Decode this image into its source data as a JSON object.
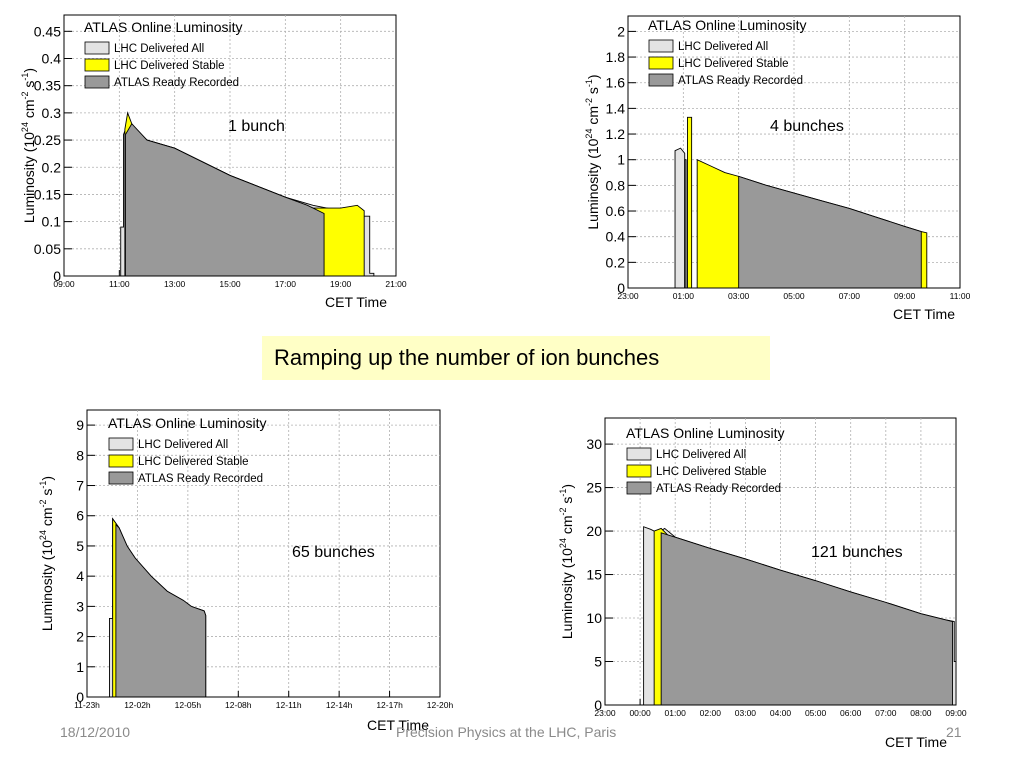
{
  "banner": "Ramping up the number of ion bunches",
  "footer": {
    "date": "18/12/2010",
    "center": "Precision Physics at the LHC, Paris",
    "page": "21"
  },
  "colors": {
    "delivered_all": "#e3e3e3",
    "delivered_stable": "#ffff00",
    "ready_recorded": "#999999"
  },
  "chart_data": [
    {
      "type": "area",
      "title": "ATLAS Online Luminosity",
      "annotation": "1 bunch",
      "xlabel": "CET Time",
      "ylabel": {
        "pre": "Luminosity (10",
        "exp1": "24",
        "mid": " cm",
        "exp2": "-2",
        "post": " s",
        "exp3": "-1",
        "end": ")"
      },
      "x_ticks": [
        "09:00",
        "11:00",
        "13:00",
        "15:00",
        "17:00",
        "19:00",
        "21:00"
      ],
      "xlim": [
        9,
        21
      ],
      "ylim": [
        0,
        0.48
      ],
      "y_ticks": [
        0,
        0.05,
        0.1,
        0.15,
        0.2,
        0.25,
        0.3,
        0.35,
        0.4,
        0.45
      ],
      "y_tick_labels": [
        "0",
        "0.05",
        "0.1",
        "0.15",
        "0.2",
        "0.25",
        "0.3",
        "0.35",
        "0.4",
        "0.45"
      ],
      "series": [
        {
          "name": "LHC Delivered All",
          "points": [
            [
              11.05,
              0
            ],
            [
              11.05,
              0.09
            ],
            [
              11.15,
              0.09
            ],
            [
              11.15,
              0.26
            ],
            [
              11.3,
              0.28
            ],
            [
              11.5,
              0.26
            ],
            [
              12,
              0.25
            ],
            [
              13,
              0.235
            ],
            [
              14,
              0.21
            ],
            [
              15,
              0.185
            ],
            [
              16,
              0.165
            ],
            [
              17,
              0.145
            ],
            [
              18,
              0.13
            ],
            [
              19,
              0.12
            ],
            [
              19.5,
              0.11
            ],
            [
              20.05,
              0.11
            ],
            [
              20.05,
              0.005
            ],
            [
              20.2,
              0.005
            ],
            [
              20.2,
              0
            ]
          ]
        },
        {
          "name": "LHC Delivered Stable",
          "points": [
            [
              11.2,
              0.27
            ],
            [
              11.3,
              0.3
            ],
            [
              11.45,
              0.28
            ],
            [
              11.6,
              0.27
            ],
            [
              12,
              0.25
            ],
            [
              13,
              0.235
            ],
            [
              14,
              0.21
            ],
            [
              15,
              0.185
            ],
            [
              16,
              0.165
            ],
            [
              17,
              0.145
            ],
            [
              18,
              0.125
            ],
            [
              18.5,
              0.125
            ],
            [
              19,
              0.125
            ],
            [
              19.6,
              0.13
            ],
            [
              19.85,
              0.12
            ]
          ]
        },
        {
          "name": "ATLAS Ready Recorded",
          "points": [
            [
              11.22,
              0.26
            ],
            [
              11.45,
              0.28
            ],
            [
              12,
              0.25
            ],
            [
              13,
              0.235
            ],
            [
              14,
              0.21
            ],
            [
              15,
              0.185
            ],
            [
              16,
              0.165
            ],
            [
              17,
              0.145
            ],
            [
              17.8,
              0.13
            ],
            [
              18.4,
              0.115
            ]
          ]
        }
      ]
    },
    {
      "type": "area",
      "title": "ATLAS Online Luminosity",
      "annotation": "4 bunches",
      "xlabel": "CET Time",
      "ylabel": {
        "pre": "Luminosity (10",
        "exp1": "24",
        "mid": " cm",
        "exp2": "-2",
        "post": " s",
        "exp3": "-1",
        "end": ")"
      },
      "x_ticks": [
        "23:00",
        "01:00",
        "03:00",
        "05:00",
        "07:00",
        "09:00",
        "11:00"
      ],
      "xlim": [
        23,
        35
      ],
      "ylim": [
        0,
        2.12
      ],
      "y_ticks": [
        0,
        0.2,
        0.4,
        0.6,
        0.8,
        1,
        1.2,
        1.4,
        1.6,
        1.8,
        2
      ],
      "y_tick_labels": [
        "0",
        "0.2",
        "0.4",
        "0.6",
        "0.8",
        "1",
        "1.2",
        "1.4",
        "1.6",
        "1.8",
        "2"
      ],
      "series": [
        {
          "name": "LHC Delivered All",
          "points": [
            [
              24.7,
              0
            ],
            [
              24.7,
              1.07
            ],
            [
              24.9,
              1.09
            ],
            [
              25.05,
              1.05
            ],
            [
              25.05,
              0
            ]
          ]
        },
        {
          "name": "LHC Delivered Stable",
          "points": [
            [
              25.15,
              0
            ],
            [
              25.15,
              1.33
            ],
            [
              25.3,
              1.33
            ],
            [
              25.3,
              0
            ],
            [
              25.5,
              0
            ],
            [
              25.5,
              1.0
            ],
            [
              26,
              0.95
            ],
            [
              26.5,
              0.9
            ],
            [
              27,
              0.87
            ],
            [
              28,
              0.8
            ],
            [
              29,
              0.74
            ],
            [
              30,
              0.68
            ],
            [
              31,
              0.62
            ],
            [
              32,
              0.55
            ],
            [
              33,
              0.48
            ],
            [
              33.6,
              0.44
            ],
            [
              33.8,
              0.43
            ],
            [
              33.8,
              0
            ]
          ]
        },
        {
          "name": "ATLAS Ready Recorded",
          "points": [
            [
              25.05,
              0
            ],
            [
              25.05,
              1.0
            ],
            [
              25.1,
              1.0
            ],
            [
              25.1,
              0
            ],
            [
              27,
              0
            ],
            [
              27,
              0.87
            ],
            [
              28,
              0.8
            ],
            [
              29,
              0.74
            ],
            [
              30,
              0.68
            ],
            [
              31,
              0.62
            ],
            [
              32,
              0.55
            ],
            [
              33,
              0.48
            ],
            [
              33.6,
              0.44
            ]
          ]
        }
      ]
    },
    {
      "type": "area",
      "title": "ATLAS Online Luminosity",
      "annotation": "65 bunches",
      "xlabel": "CET Time",
      "ylabel": {
        "pre": "Luminosity (10",
        "exp1": "24",
        "mid": " cm",
        "exp2": "-2",
        "post": " s",
        "exp3": "-1",
        "end": ")"
      },
      "x_ticks": [
        "11-23h",
        "12-02h",
        "12-05h",
        "12-08h",
        "12-11h",
        "12-14h",
        "12-17h",
        "12-20h"
      ],
      "xlim": [
        23,
        45
      ],
      "ylim": [
        0,
        9.5
      ],
      "y_ticks": [
        0,
        1,
        2,
        3,
        4,
        5,
        6,
        7,
        8,
        9
      ],
      "y_tick_labels": [
        "0",
        "1",
        "2",
        "3",
        "4",
        "5",
        "6",
        "7",
        "8",
        "9"
      ],
      "series": [
        {
          "name": "LHC Delivered All",
          "points": [
            [
              24.4,
              0
            ],
            [
              24.4,
              2.6
            ],
            [
              24.6,
              2.6
            ],
            [
              24.6,
              5.9
            ],
            [
              25,
              5.6
            ],
            [
              25.5,
              5.0
            ],
            [
              26,
              4.6
            ],
            [
              27,
              4.0
            ],
            [
              28,
              3.5
            ],
            [
              29,
              3.2
            ],
            [
              29.5,
              3.0
            ],
            [
              30.3,
              2.85
            ],
            [
              30.4,
              2.7
            ],
            [
              30.4,
              0
            ]
          ]
        },
        {
          "name": "LHC Delivered Stable",
          "points": [
            [
              24.6,
              5.9
            ],
            [
              25,
              5.6
            ],
            [
              25.3,
              5.2
            ]
          ]
        },
        {
          "name": "ATLAS Ready Recorded",
          "points": [
            [
              24.8,
              0
            ],
            [
              24.8,
              5.7
            ],
            [
              25,
              5.6
            ],
            [
              25.5,
              5.0
            ],
            [
              26,
              4.6
            ],
            [
              27,
              4.0
            ],
            [
              28,
              3.5
            ],
            [
              29,
              3.2
            ],
            [
              29.5,
              3.0
            ],
            [
              30.3,
              2.85
            ],
            [
              30.4,
              2.7
            ],
            [
              30.4,
              0
            ]
          ]
        }
      ]
    },
    {
      "type": "area",
      "title": "ATLAS Online Luminosity",
      "annotation": "121 bunches",
      "xlabel": "CET Time",
      "ylabel": {
        "pre": "Luminosity (10",
        "exp1": "24",
        "mid": " cm",
        "exp2": "-2",
        "post": " s",
        "exp3": "-1",
        "end": ")"
      },
      "x_ticks": [
        "23:00",
        "00:00",
        "01:00",
        "02:00",
        "03:00",
        "04:00",
        "05:00",
        "06:00",
        "07:00",
        "08:00",
        "09:00"
      ],
      "xlim": [
        23,
        33
      ],
      "ylim": [
        0,
        33
      ],
      "y_ticks": [
        0,
        5,
        10,
        15,
        20,
        25,
        30
      ],
      "y_tick_labels": [
        "0",
        "5",
        "10",
        "15",
        "20",
        "25",
        "30"
      ],
      "series": [
        {
          "name": "LHC Delivered All",
          "points": [
            [
              24.1,
              0
            ],
            [
              24.1,
              20.5
            ],
            [
              24.3,
              20.2
            ],
            [
              24.5,
              19.8
            ],
            [
              24.7,
              20.3
            ],
            [
              25,
              19.3
            ],
            [
              26,
              18.0
            ],
            [
              27,
              16.8
            ],
            [
              28,
              15.5
            ],
            [
              29,
              14.3
            ],
            [
              30,
              13.0
            ],
            [
              31,
              11.8
            ],
            [
              32,
              10.5
            ],
            [
              32.7,
              9.8
            ],
            [
              32.95,
              9.6
            ],
            [
              32.95,
              5.0
            ],
            [
              33.0,
              5.0
            ],
            [
              33.0,
              0
            ]
          ]
        },
        {
          "name": "LHC Delivered Stable",
          "points": [
            [
              24.4,
              20
            ],
            [
              24.6,
              20.3
            ],
            [
              24.8,
              19.5
            ]
          ]
        },
        {
          "name": "ATLAS Ready Recorded",
          "points": [
            [
              24.6,
              0
            ],
            [
              24.6,
              19.8
            ],
            [
              25,
              19.3
            ],
            [
              26,
              18.0
            ],
            [
              27,
              16.8
            ],
            [
              28,
              15.5
            ],
            [
              29,
              14.3
            ],
            [
              30,
              13.0
            ],
            [
              31,
              11.8
            ],
            [
              32,
              10.5
            ],
            [
              32.7,
              9.8
            ],
            [
              32.9,
              9.6
            ],
            [
              32.9,
              0
            ]
          ]
        }
      ]
    }
  ]
}
